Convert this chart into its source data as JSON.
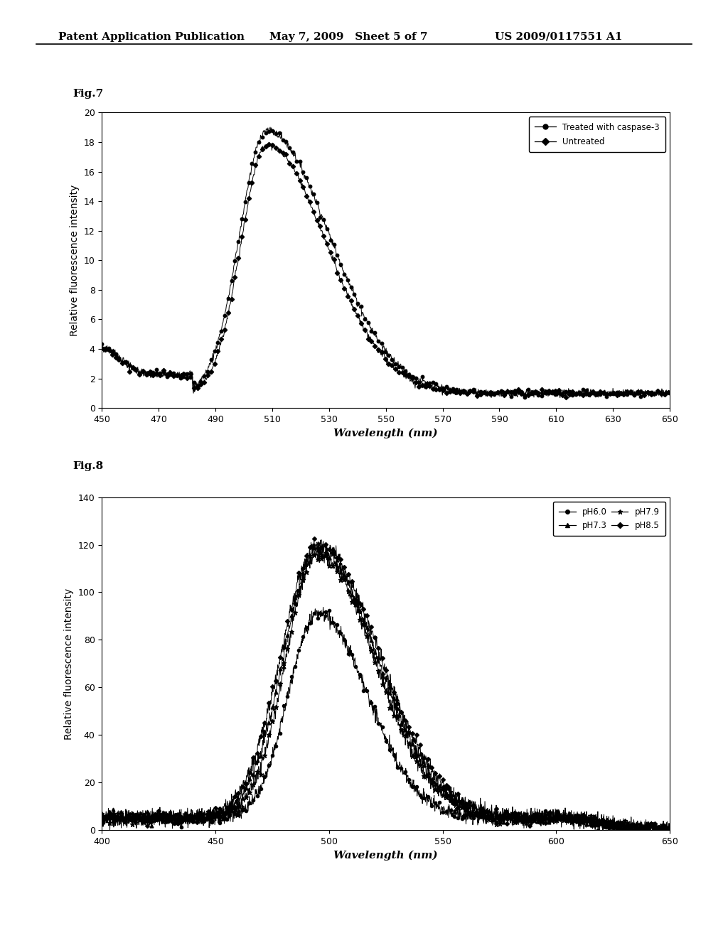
{
  "fig7_label": "Fig.7",
  "fig8_label": "Fig.8",
  "header_left": "Patent Application Publication",
  "header_mid": "May 7, 2009   Sheet 5 of 7",
  "header_right": "US 2009/0117551 A1",
  "fig7": {
    "xlim": [
      450,
      650
    ],
    "ylim": [
      0,
      20
    ],
    "xticks": [
      450,
      470,
      490,
      510,
      530,
      550,
      570,
      590,
      610,
      630,
      650
    ],
    "yticks": [
      0,
      2,
      4,
      6,
      8,
      10,
      12,
      14,
      16,
      18,
      20
    ],
    "xlabel": "Wavelength (nm)",
    "ylabel": "Relative fluorescence intensity",
    "legend1": "Treated with caspase-3",
    "legend2": "Untreated",
    "peak_wavelength": 508,
    "peak_treated": 19.0,
    "peak_untreated": 18.3
  },
  "fig8": {
    "xlim": [
      400,
      650
    ],
    "ylim": [
      0,
      140
    ],
    "xticks": [
      400,
      450,
      500,
      550,
      600,
      650
    ],
    "yticks": [
      0,
      20,
      40,
      60,
      80,
      100,
      120,
      140
    ],
    "xlabel": "Wavelength (nm)",
    "ylabel": "Relative fluorescence intensity",
    "legend_ph60": "pH6.0",
    "legend_ph73": "pH7.3",
    "legend_ph79": "pH7.9",
    "legend_ph85": "pH8.5",
    "peak_ph60": 92,
    "peak_ph73": 118,
    "peak_ph79": 116,
    "peak_ph85": 120,
    "peak_wavelength": 495
  },
  "background_color": "#ffffff",
  "line_color": "#000000",
  "font_size_header": 11,
  "font_size_label": 10,
  "font_size_tick": 9,
  "font_size_fig_label": 11
}
